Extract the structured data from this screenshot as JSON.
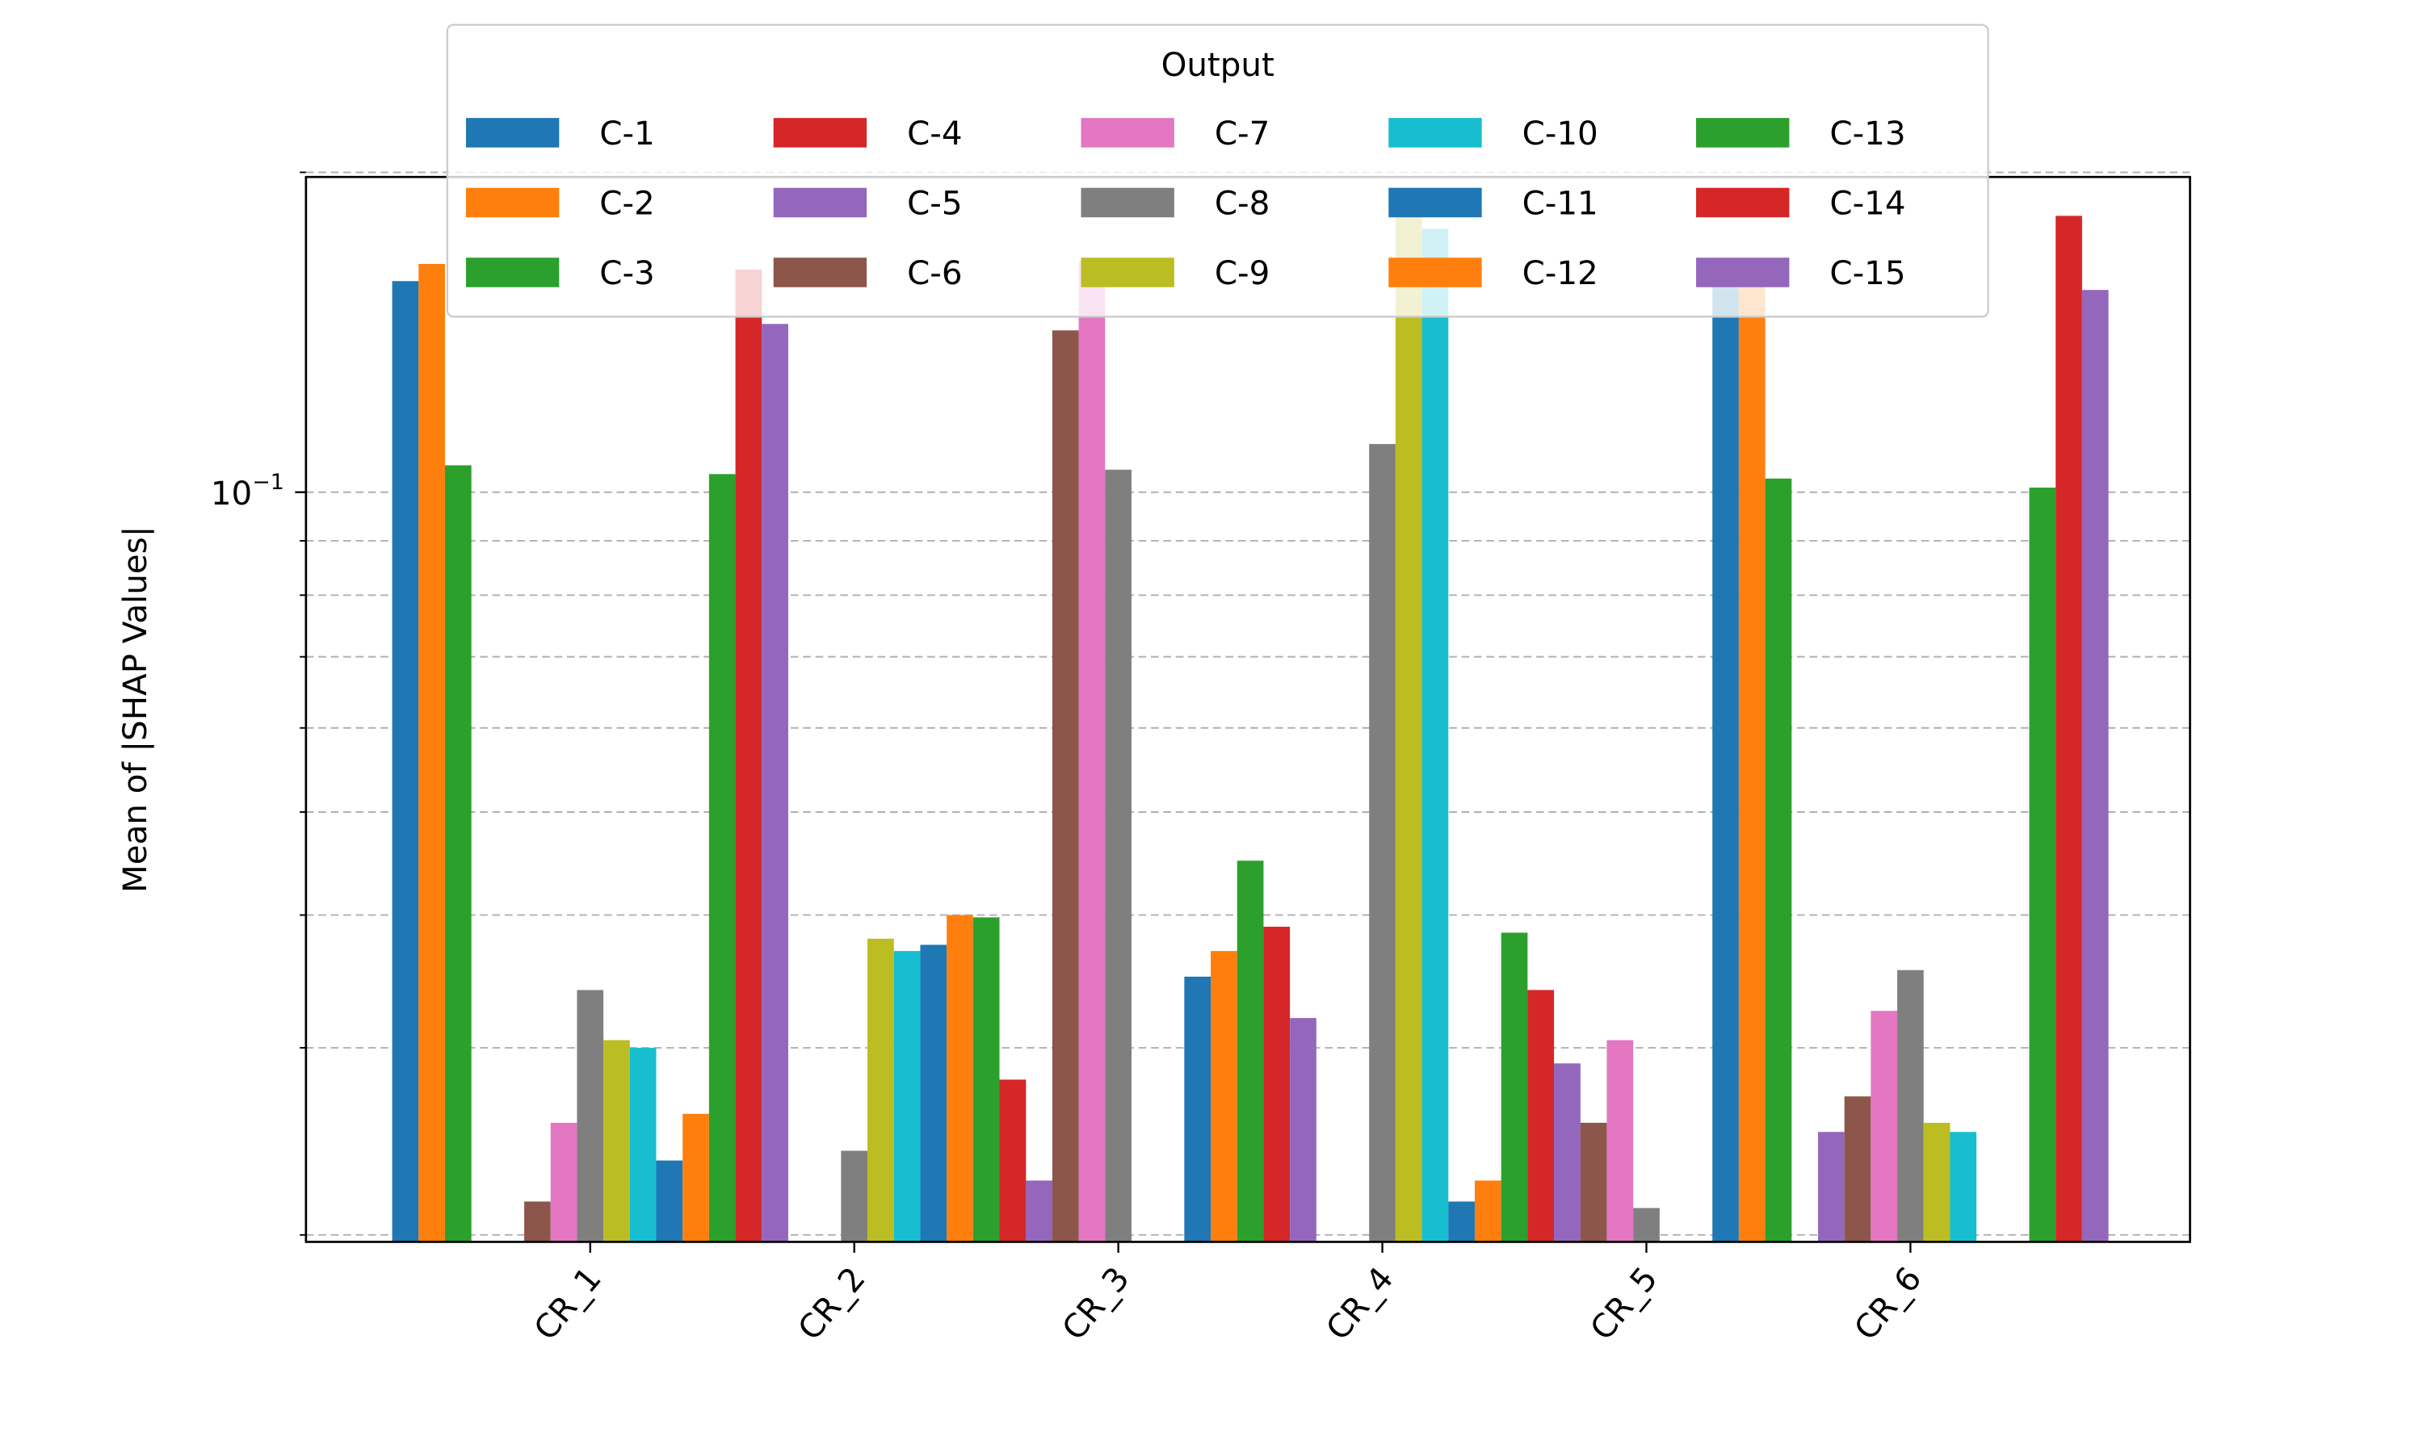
{
  "chart_data": {
    "type": "bar",
    "title": "",
    "xlabel": "",
    "ylabel": "Mean of |SHAP Values|",
    "yscale": "log",
    "ylim": [
      0.0197,
      0.198
    ],
    "yticks": [
      {
        "value": 0.1,
        "label": "10",
        "exp": "−1"
      }
    ],
    "minor_ticks": [
      0.02,
      0.03,
      0.04,
      0.05,
      0.06,
      0.07,
      0.08,
      0.09,
      0.2
    ],
    "grid": true,
    "legend": {
      "title": "Output",
      "placement": "top-center",
      "columns": 5
    },
    "categories": [
      "CR_1",
      "CR_2",
      "CR_3",
      "CR_4",
      "CR_5",
      "CR_6"
    ],
    "series": [
      {
        "name": "C-1",
        "color": "#1f77b4",
        "values": [
          0.158,
          null,
          null,
          0.035,
          null,
          0.164
        ]
      },
      {
        "name": "C-2",
        "color": "#ff7f0e",
        "values": [
          0.164,
          null,
          null,
          0.037,
          null,
          0.16
        ]
      },
      {
        "name": "C-3",
        "color": "#2ca02c",
        "values": [
          0.106,
          null,
          null,
          0.045,
          null,
          0.103
        ]
      },
      {
        "name": "C-4",
        "color": "#d62728",
        "values": [
          null,
          null,
          0.028,
          0.039,
          0.034,
          null
        ]
      },
      {
        "name": "C-5",
        "color": "#9467bd",
        "values": [
          null,
          null,
          0.0225,
          0.032,
          0.029,
          0.025
        ]
      },
      {
        "name": "C-6",
        "color": "#8c564b",
        "values": [
          0.0215,
          null,
          0.142,
          null,
          0.0255,
          0.027
        ]
      },
      {
        "name": "C-7",
        "color": "#e377c2",
        "values": [
          0.0255,
          null,
          0.165,
          null,
          0.0305,
          0.0325
        ]
      },
      {
        "name": "C-8",
        "color": "#7f7f7f",
        "values": [
          0.034,
          0.024,
          0.105,
          0.111,
          0.0212,
          0.0355
        ]
      },
      {
        "name": "C-9",
        "color": "#bcbd22",
        "values": [
          0.0305,
          0.038,
          null,
          0.182,
          null,
          0.0255
        ]
      },
      {
        "name": "C-10",
        "color": "#17becf",
        "values": [
          0.03,
          0.037,
          null,
          0.177,
          null,
          0.025
        ]
      },
      {
        "name": "C-11",
        "color": "#1f77b4",
        "values": [
          0.0235,
          0.0375,
          null,
          0.0215,
          null,
          null
        ]
      },
      {
        "name": "C-12",
        "color": "#ff7f0e",
        "values": [
          0.026,
          0.04,
          null,
          0.0225,
          null,
          null
        ]
      },
      {
        "name": "C-13",
        "color": "#2ca02c",
        "values": [
          0.104,
          0.0398,
          null,
          0.0385,
          null,
          0.101
        ]
      },
      {
        "name": "C-14",
        "color": "#d62728",
        "values": [
          0.162,
          0.028,
          null,
          0.034,
          null,
          0.182
        ]
      },
      {
        "name": "C-15",
        "color": "#9467bd",
        "values": [
          0.144,
          0.0225,
          null,
          0.029,
          null,
          0.155
        ]
      }
    ]
  }
}
